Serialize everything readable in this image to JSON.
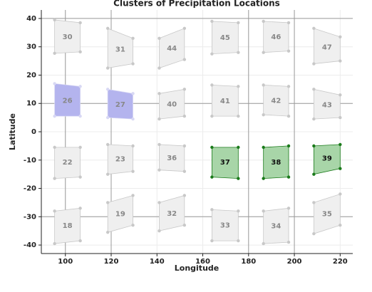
{
  "chart_data": {
    "type": "cluster-map",
    "title": "Clusters of Precipitation Locations",
    "x_label": "Longitude",
    "y_label": "Latitude",
    "xlim": [
      89.5,
      225.5
    ],
    "ylim": [
      -43,
      43
    ],
    "xticks": [
      100,
      120,
      140,
      160,
      180,
      200,
      220
    ],
    "yticks": [
      -40,
      -30,
      -20,
      -10,
      0,
      10,
      20,
      30,
      40
    ],
    "grid": true,
    "dividers": {
      "lon": [
        100,
        120,
        180,
        200
      ],
      "lat": [
        40,
        10,
        -30
      ]
    },
    "clusters": [
      {
        "label": "30",
        "color": "#efefef",
        "point_color": "#c8c8c8",
        "label_color": "#888888",
        "points": [
          [
            95.3,
            39.5
          ],
          [
            106.5,
            38.5
          ],
          [
            106.5,
            28.2
          ],
          [
            95.3,
            27.7
          ]
        ]
      },
      {
        "label": "31",
        "color": "#efefef",
        "point_color": "#c8c8c8",
        "label_color": "#888888",
        "points": [
          [
            118.5,
            36.5
          ],
          [
            129.5,
            33
          ],
          [
            129.5,
            24
          ],
          [
            118.5,
            22.5
          ]
        ]
      },
      {
        "label": "44",
        "color": "#efefef",
        "point_color": "#c8c8c8",
        "label_color": "#888888",
        "points": [
          [
            141,
            33
          ],
          [
            152,
            36.5
          ],
          [
            152,
            25.5
          ],
          [
            141,
            22.5
          ]
        ]
      },
      {
        "label": "45",
        "color": "#efefef",
        "point_color": "#c8c8c8",
        "label_color": "#888888",
        "points": [
          [
            164,
            39
          ],
          [
            175.5,
            38.5
          ],
          [
            175.5,
            28
          ],
          [
            164,
            27.5
          ]
        ]
      },
      {
        "label": "46",
        "color": "#efefef",
        "point_color": "#c8c8c8",
        "label_color": "#888888",
        "points": [
          [
            186.5,
            39
          ],
          [
            197.5,
            38.5
          ],
          [
            197.5,
            28.5
          ],
          [
            186.5,
            28
          ]
        ]
      },
      {
        "label": "47",
        "color": "#efefef",
        "point_color": "#c8c8c8",
        "label_color": "#888888",
        "points": [
          [
            208.5,
            36.5
          ],
          [
            220,
            33.5
          ],
          [
            220,
            25
          ],
          [
            208.5,
            24
          ]
        ]
      },
      {
        "label": "26",
        "color": "#b4b4ee",
        "point_color": "#d8d8f4",
        "label_color": "#888888",
        "points": [
          [
            95.3,
            17
          ],
          [
            106.5,
            16
          ],
          [
            106.5,
            5.5
          ],
          [
            95.3,
            5.5
          ]
        ]
      },
      {
        "label": "27",
        "color": "#b4b4ee",
        "point_color": "#d8d8f4",
        "label_color": "#888888",
        "points": [
          [
            118.5,
            15
          ],
          [
            129.5,
            13.5
          ],
          [
            129.5,
            4.5
          ],
          [
            118.5,
            5
          ]
        ]
      },
      {
        "label": "40",
        "color": "#efefef",
        "point_color": "#c8c8c8",
        "label_color": "#888888",
        "points": [
          [
            141,
            13.5
          ],
          [
            152,
            15
          ],
          [
            152,
            5.5
          ],
          [
            141,
            4.5
          ]
        ]
      },
      {
        "label": "41",
        "color": "#efefef",
        "point_color": "#c8c8c8",
        "label_color": "#888888",
        "points": [
          [
            164,
            16.5
          ],
          [
            175.5,
            16
          ],
          [
            175.5,
            5.5
          ],
          [
            164,
            5.5
          ]
        ]
      },
      {
        "label": "42",
        "color": "#efefef",
        "point_color": "#c8c8c8",
        "label_color": "#888888",
        "points": [
          [
            186.5,
            16.5
          ],
          [
            197.5,
            16
          ],
          [
            197.5,
            5.5
          ],
          [
            186.5,
            6
          ]
        ]
      },
      {
        "label": "43",
        "color": "#efefef",
        "point_color": "#c8c8c8",
        "label_color": "#888888",
        "points": [
          [
            208.5,
            15
          ],
          [
            220,
            13
          ],
          [
            220,
            5
          ],
          [
            208.5,
            4.5
          ]
        ]
      },
      {
        "label": "22",
        "color": "#efefef",
        "point_color": "#c8c8c8",
        "label_color": "#888888",
        "points": [
          [
            95.3,
            -5.5
          ],
          [
            106.5,
            -5.5
          ],
          [
            106.5,
            -16
          ],
          [
            95.3,
            -16.5
          ]
        ]
      },
      {
        "label": "23",
        "color": "#efefef",
        "point_color": "#c8c8c8",
        "label_color": "#888888",
        "points": [
          [
            118.5,
            -4.5
          ],
          [
            129.5,
            -5
          ],
          [
            129.5,
            -14
          ],
          [
            118.5,
            -15
          ]
        ]
      },
      {
        "label": "36",
        "color": "#efefef",
        "point_color": "#c8c8c8",
        "label_color": "#888888",
        "points": [
          [
            141,
            -4.5
          ],
          [
            152,
            -5
          ],
          [
            152,
            -14
          ],
          [
            141,
            -13.5
          ]
        ]
      },
      {
        "label": "37",
        "color": "#a8d5a8",
        "point_color": "#1a7a1a",
        "label_color": "#111111",
        "points": [
          [
            164,
            -5.5
          ],
          [
            175.5,
            -5.5
          ],
          [
            175.5,
            -16.5
          ],
          [
            164,
            -16
          ]
        ]
      },
      {
        "label": "38",
        "color": "#a8d5a8",
        "point_color": "#1a7a1a",
        "label_color": "#111111",
        "points": [
          [
            186.5,
            -5.5
          ],
          [
            197.5,
            -5
          ],
          [
            197.5,
            -16
          ],
          [
            186.5,
            -16.5
          ]
        ]
      },
      {
        "label": "39",
        "color": "#a8d5a8",
        "point_color": "#1a7a1a",
        "label_color": "#111111",
        "points": [
          [
            208.5,
            -5
          ],
          [
            220,
            -4.5
          ],
          [
            220,
            -13
          ],
          [
            208.5,
            -15
          ]
        ]
      },
      {
        "label": "18",
        "color": "#efefef",
        "point_color": "#c8c8c8",
        "label_color": "#888888",
        "points": [
          [
            95.3,
            -28
          ],
          [
            106.5,
            -27
          ],
          [
            106.5,
            -38.5
          ],
          [
            95.3,
            -39.5
          ]
        ]
      },
      {
        "label": "19",
        "color": "#efefef",
        "point_color": "#c8c8c8",
        "label_color": "#888888",
        "points": [
          [
            118.5,
            -25
          ],
          [
            129.5,
            -22.5
          ],
          [
            129.5,
            -33
          ],
          [
            118.5,
            -35.5
          ]
        ]
      },
      {
        "label": "32",
        "color": "#efefef",
        "point_color": "#c8c8c8",
        "label_color": "#888888",
        "points": [
          [
            141,
            -25
          ],
          [
            152,
            -22.5
          ],
          [
            152,
            -33
          ],
          [
            141,
            -35
          ]
        ]
      },
      {
        "label": "33",
        "color": "#efefef",
        "point_color": "#c8c8c8",
        "label_color": "#888888",
        "points": [
          [
            164,
            -27.5
          ],
          [
            175.5,
            -28
          ],
          [
            175.5,
            -38.5
          ],
          [
            164,
            -38.5
          ]
        ]
      },
      {
        "label": "34",
        "color": "#efefef",
        "point_color": "#c8c8c8",
        "label_color": "#888888",
        "points": [
          [
            186.5,
            -28
          ],
          [
            197.5,
            -27
          ],
          [
            197.5,
            -39
          ],
          [
            186.5,
            -39.5
          ]
        ]
      },
      {
        "label": "35",
        "color": "#efefef",
        "point_color": "#c8c8c8",
        "label_color": "#888888",
        "points": [
          [
            208.5,
            -25
          ],
          [
            220,
            -22
          ],
          [
            220,
            -33
          ],
          [
            208.5,
            -36
          ]
        ]
      }
    ]
  }
}
